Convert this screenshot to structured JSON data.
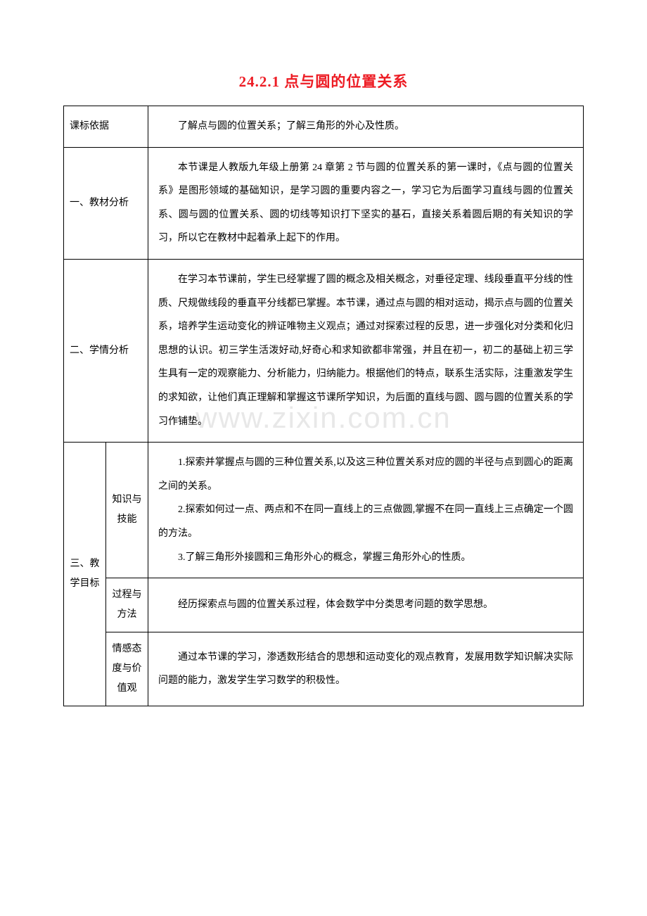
{
  "title": "24.2.1  点与圆的位置关系",
  "watermark": "www.zixin.com.cn",
  "rows": {
    "r1": {
      "label": "课标依据",
      "content": "了解点与圆的位置关系；了解三角形的外心及性质。"
    },
    "r2": {
      "label": "一、教材分析",
      "content": "本节课是人教版九年级上册第 24 章第 2 节与圆的位置关系的第一课时，《点与圆的位置关系》是图形领域的基础知识，是学习圆的重要内容之一，学习它为后面学习直线与圆的位置关系、圆与圆的位置关系、圆的切线等知识打下坚实的基石，直接关系着圆后期的有关知识的学习，所以它在教材中起着承上起下的作用。"
    },
    "r3": {
      "label": "二、学情分析",
      "content": "在学习本节课前，学生已经掌握了圆的概念及相关概念，对垂径定理、线段垂直平分线的性质、尺规做线段的垂直平分线都已掌握。本节课，通过点与圆的相对运动，揭示点与圆的位置关系，培养学生运动变化的辨证唯物主义观点；通过对探索过程的反思，进一步强化对分类和化归思想的认识。初三学生活泼好动,好奇心和求知欲都非常强，并且在初一，初二的基础上初三学生具有一定的观察能力、分析能力，归纳能力。根据他们的特点，联系生活实际，注重激发学生的求知欲，让他们真正理解和掌握这节课所学知识，为后面的直线与圆、圆与圆的位置关系的学习作铺垫。"
    },
    "r4": {
      "label_main": "三、教学目标",
      "sub1_label": "知识与技能",
      "sub1_p1": "1.探索并掌握点与圆的三种位置关系,以及这三种位置关系对应的圆的半径与点到圆心的距离之间的关系。",
      "sub1_p2": "2.探索如何过一点、两点和不在同一直线上的三点做圆,掌握不在同一直线上三点确定一个圆的方法。",
      "sub1_p3": "3.了解三角形外接圆和三角形外心的概念，掌握三角形外心的性质。",
      "sub2_label": "过程与方法",
      "sub2_content": "经历探索点与圆的位置关系过程，体会数学中分类思考问题的数学思想。",
      "sub3_label": "情感态度与价值观",
      "sub3_content": "通过本节课的学习，渗透数形结合的思想和运动变化的观点教育，发展用数学知识解决实际问题的能力，激发学生学习数学的积极性。"
    }
  }
}
